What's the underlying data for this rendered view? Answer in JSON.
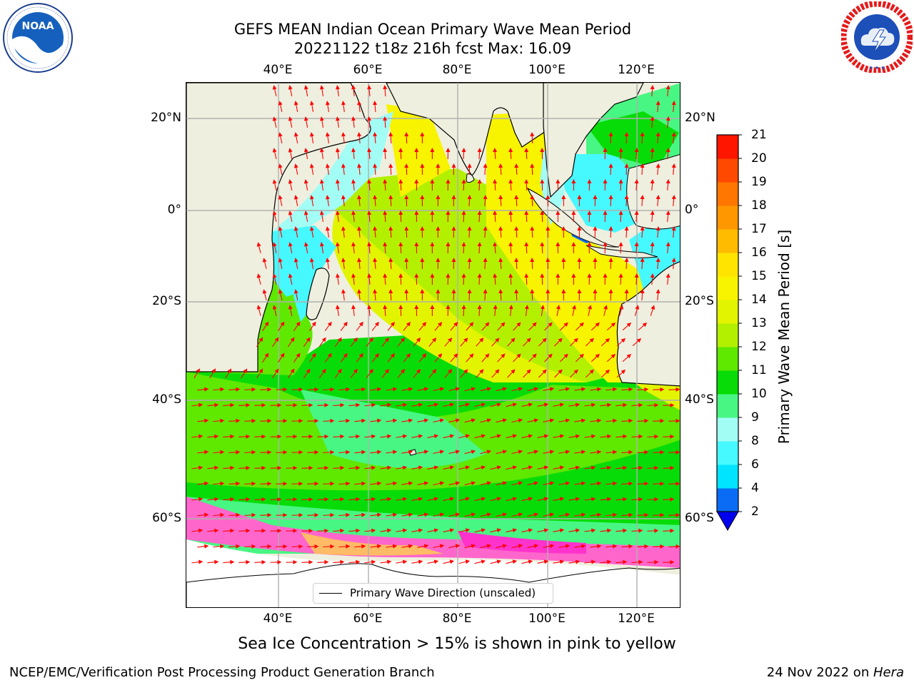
{
  "header": {
    "title_line1": "GEFS MEAN Indian Ocean Primary Wave Mean Period",
    "title_line2": "20221122 t18z 216h fcst   Max: 16.09"
  },
  "logos": {
    "left": {
      "name": "NOAA",
      "ring_text": "NATIONAL OCEANIC AND ATMOSPHERIC ADMINISTRATION · U.S. DEPARTMENT OF COMMERCE"
    },
    "right": {
      "name": "National Weather Service",
      "ring_text": "NATIONAL WEATHER SERVICE"
    }
  },
  "map": {
    "lon_range": [
      20,
      130
    ],
    "lat_range": [
      -70,
      28
    ],
    "lon_ticks": [
      "40°E",
      "60°E",
      "80°E",
      "100°E",
      "120°E"
    ],
    "lat_ticks": [
      "20°N",
      "0°",
      "20°S",
      "40°S",
      "60°S"
    ],
    "legend_label": "Primary Wave Direction (unscaled)",
    "land_color": "#efefdf",
    "arrow_color": "#ff0000"
  },
  "colorbar": {
    "title": "Primary Wave Mean Period [s]",
    "tick_labels": [
      "2",
      "4",
      "6",
      "8",
      "9",
      "10",
      "11",
      "12",
      "13",
      "14",
      "15",
      "16",
      "17",
      "18",
      "19",
      "20",
      "21"
    ],
    "colors": [
      "#0a6cf5",
      "#00e4ff",
      "#46f8ff",
      "#a2fdf5",
      "#48f683",
      "#08dc08",
      "#5fe800",
      "#b2f000",
      "#e2f400",
      "#f8f400",
      "#ffe400",
      "#ffbb00",
      "#ff9700",
      "#ff7600",
      "#ff4900",
      "#ff1500"
    ],
    "under_color": "#0000ee"
  },
  "caption": "Sea Ice Concentration > 15% is shown in pink to yellow",
  "footer": {
    "left": "NCEP/EMC/Verification Post Processing Product Generation Branch",
    "right_prefix": "24 Nov 2022 on ",
    "right_host": "Hera"
  }
}
